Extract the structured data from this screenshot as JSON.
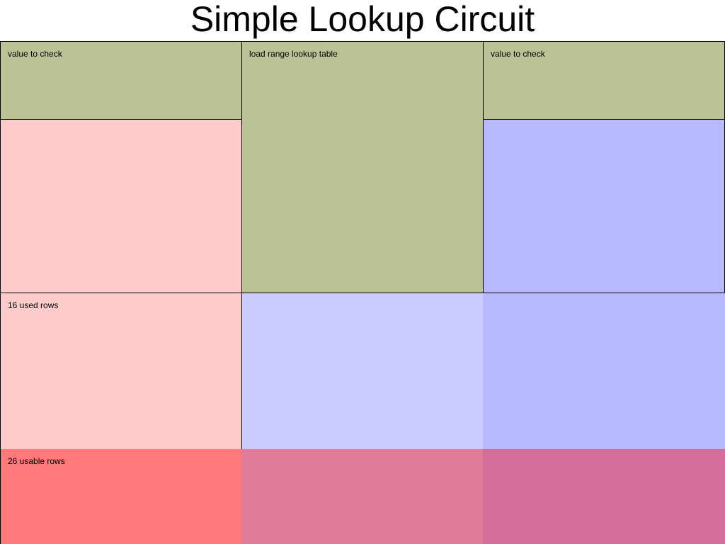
{
  "title": "Simple Lookup Circuit",
  "colors": {
    "lookup_green": "#bac296",
    "pink_light": "#fecbcb",
    "blue_medium": "#b8b8fe",
    "blue_light": "#cbcbfe",
    "red_usable": "#fe7979",
    "mauve_usable": "#e07b98",
    "purple_usable": "#d46e9b",
    "border": "#000000"
  },
  "regions": {
    "left_value_to_check": "value to check",
    "center_lookup_table": "load range lookup table",
    "right_value_to_check": "value to check",
    "used_rows": "16 used rows",
    "usable_rows": "26 usable rows"
  }
}
